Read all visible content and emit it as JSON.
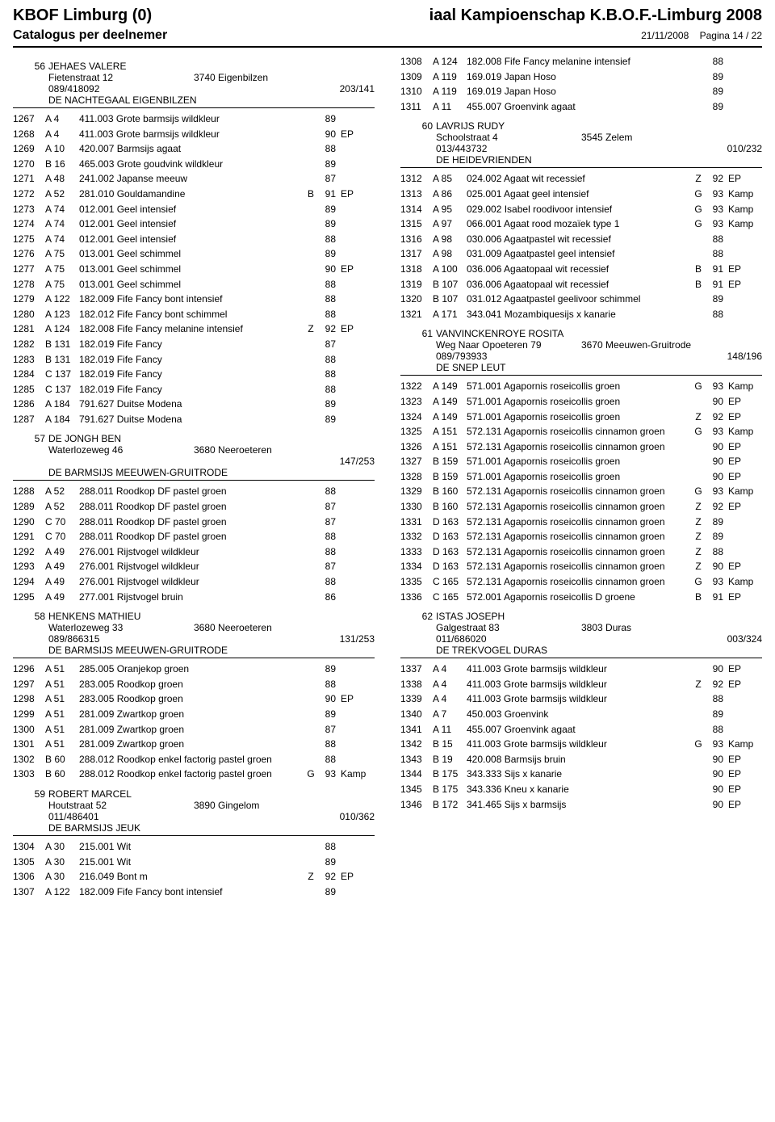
{
  "header": {
    "left": "KBOF Limburg (0)",
    "right": "iaal Kampioenschap K.B.O.F.-Limburg 2008",
    "sub_left": "Catalogus per deelnemer",
    "date": "21/11/2008",
    "page": "Pagina 14 / 22"
  },
  "left_col": [
    {
      "type": "participant",
      "id": "56",
      "name": "JEHAES VALERE",
      "street": "Fietenstraat 12",
      "city": "3740 Eigenbilzen",
      "phone": "089/418092",
      "code": "203/141",
      "club": "DE NACHTEGAAL EIGENBILZEN",
      "entries": [
        {
          "n": "1267",
          "cage": "A 4",
          "desc": "411.003 Grote barmsijs wildkleur",
          "flag": "",
          "score": "89",
          "award": ""
        },
        {
          "n": "1268",
          "cage": "A 4",
          "desc": "411.003 Grote barmsijs wildkleur",
          "flag": "",
          "score": "90",
          "award": "EP"
        },
        {
          "n": "1269",
          "cage": "A 10",
          "desc": "420.007 Barmsijs agaat",
          "flag": "",
          "score": "88",
          "award": ""
        },
        {
          "n": "1270",
          "cage": "B 16",
          "desc": "465.003 Grote goudvink wildkleur",
          "flag": "",
          "score": "89",
          "award": ""
        },
        {
          "n": "1271",
          "cage": "A 48",
          "desc": "241.002 Japanse meeuw",
          "flag": "",
          "score": "87",
          "award": ""
        },
        {
          "n": "1272",
          "cage": "A 52",
          "desc": "281.010 Gouldamandine",
          "flag": "B",
          "score": "91",
          "award": "EP"
        },
        {
          "n": "1273",
          "cage": "A 74",
          "desc": "012.001 Geel intensief",
          "flag": "",
          "score": "89",
          "award": ""
        },
        {
          "n": "1274",
          "cage": "A 74",
          "desc": "012.001 Geel intensief",
          "flag": "",
          "score": "89",
          "award": ""
        },
        {
          "n": "1275",
          "cage": "A 74",
          "desc": "012.001 Geel intensief",
          "flag": "",
          "score": "88",
          "award": ""
        },
        {
          "n": "1276",
          "cage": "A 75",
          "desc": "013.001 Geel schimmel",
          "flag": "",
          "score": "89",
          "award": ""
        },
        {
          "n": "1277",
          "cage": "A 75",
          "desc": "013.001 Geel schimmel",
          "flag": "",
          "score": "90",
          "award": "EP"
        },
        {
          "n": "1278",
          "cage": "A 75",
          "desc": "013.001 Geel schimmel",
          "flag": "",
          "score": "88",
          "award": ""
        },
        {
          "n": "1279",
          "cage": "A 122",
          "desc": "182.009 Fife Fancy bont intensief",
          "flag": "",
          "score": "88",
          "award": ""
        },
        {
          "n": "1280",
          "cage": "A 123",
          "desc": "182.012 Fife Fancy bont schimmel",
          "flag": "",
          "score": "88",
          "award": ""
        },
        {
          "n": "1281",
          "cage": "A 124",
          "desc": "182.008 Fife Fancy melanine intensief",
          "flag": "Z",
          "score": "92",
          "award": "EP"
        },
        {
          "n": "1282",
          "cage": "B 131",
          "desc": "182.019 Fife Fancy",
          "flag": "",
          "score": "87",
          "award": ""
        },
        {
          "n": "1283",
          "cage": "B 131",
          "desc": "182.019 Fife Fancy",
          "flag": "",
          "score": "88",
          "award": ""
        },
        {
          "n": "1284",
          "cage": "C 137",
          "desc": "182.019 Fife Fancy",
          "flag": "",
          "score": "88",
          "award": ""
        },
        {
          "n": "1285",
          "cage": "C 137",
          "desc": "182.019 Fife Fancy",
          "flag": "",
          "score": "88",
          "award": ""
        },
        {
          "n": "1286",
          "cage": "A 184",
          "desc": "791.627 Duitse Modena",
          "flag": "",
          "score": "89",
          "award": ""
        },
        {
          "n": "1287",
          "cage": "A 184",
          "desc": "791.627 Duitse Modena",
          "flag": "",
          "score": "89",
          "award": ""
        }
      ]
    },
    {
      "type": "participant",
      "id": "57",
      "name": "DE JONGH BEN",
      "street": "Waterlozeweg 46",
      "city": "3680 Neeroeteren",
      "phone": "",
      "code": "147/253",
      "club": "DE BARMSIJS MEEUWEN-GRUITRODE",
      "entries": [
        {
          "n": "1288",
          "cage": "A 52",
          "desc": "288.011 Roodkop DF pastel groen",
          "flag": "",
          "score": "88",
          "award": ""
        },
        {
          "n": "1289",
          "cage": "A 52",
          "desc": "288.011 Roodkop DF pastel groen",
          "flag": "",
          "score": "87",
          "award": ""
        },
        {
          "n": "1290",
          "cage": "C 70",
          "desc": "288.011 Roodkop DF pastel groen",
          "flag": "",
          "score": "87",
          "award": ""
        },
        {
          "n": "1291",
          "cage": "C 70",
          "desc": "288.011 Roodkop DF pastel groen",
          "flag": "",
          "score": "88",
          "award": ""
        },
        {
          "n": "1292",
          "cage": "A 49",
          "desc": "276.001 Rijstvogel wildkleur",
          "flag": "",
          "score": "88",
          "award": ""
        },
        {
          "n": "1293",
          "cage": "A 49",
          "desc": "276.001 Rijstvogel wildkleur",
          "flag": "",
          "score": "87",
          "award": ""
        },
        {
          "n": "1294",
          "cage": "A 49",
          "desc": "276.001 Rijstvogel wildkleur",
          "flag": "",
          "score": "88",
          "award": ""
        },
        {
          "n": "1295",
          "cage": "A 49",
          "desc": "277.001 Rijstvogel bruin",
          "flag": "",
          "score": "86",
          "award": ""
        }
      ]
    },
    {
      "type": "participant",
      "id": "58",
      "name": "HENKENS MATHIEU",
      "street": "Waterlozeweg 33",
      "city": "3680 Neeroeteren",
      "phone": "089/866315",
      "code": "131/253",
      "club": "DE BARMSIJS MEEUWEN-GRUITRODE",
      "entries": [
        {
          "n": "1296",
          "cage": "A 51",
          "desc": "285.005 Oranjekop groen",
          "flag": "",
          "score": "89",
          "award": ""
        },
        {
          "n": "1297",
          "cage": "A 51",
          "desc": "283.005 Roodkop groen",
          "flag": "",
          "score": "88",
          "award": ""
        },
        {
          "n": "1298",
          "cage": "A 51",
          "desc": "283.005 Roodkop groen",
          "flag": "",
          "score": "90",
          "award": "EP"
        },
        {
          "n": "1299",
          "cage": "A 51",
          "desc": "281.009 Zwartkop groen",
          "flag": "",
          "score": "89",
          "award": ""
        },
        {
          "n": "1300",
          "cage": "A 51",
          "desc": "281.009 Zwartkop groen",
          "flag": "",
          "score": "87",
          "award": ""
        },
        {
          "n": "1301",
          "cage": "A 51",
          "desc": "281.009 Zwartkop groen",
          "flag": "",
          "score": "88",
          "award": ""
        },
        {
          "n": "1302",
          "cage": "B 60",
          "desc": "288.012 Roodkop enkel factorig pastel groen",
          "flag": "",
          "score": "88",
          "award": ""
        },
        {
          "n": "1303",
          "cage": "B 60",
          "desc": "288.012 Roodkop enkel factorig pastel groen",
          "flag": "G",
          "score": "93",
          "award": "Kamp"
        }
      ]
    },
    {
      "type": "participant",
      "id": "59",
      "name": "ROBERT MARCEL",
      "street": "Houtstraat 52",
      "city": "3890 Gingelom",
      "phone": "011/486401",
      "code": "010/362",
      "club": "DE BARMSIJS JEUK",
      "entries": [
        {
          "n": "1304",
          "cage": "A 30",
          "desc": "215.001 Wit",
          "flag": "",
          "score": "88",
          "award": ""
        },
        {
          "n": "1305",
          "cage": "A 30",
          "desc": "215.001 Wit",
          "flag": "",
          "score": "89",
          "award": ""
        },
        {
          "n": "1306",
          "cage": "A 30",
          "desc": "216.049 Bont m",
          "flag": "Z",
          "score": "92",
          "award": "EP"
        },
        {
          "n": "1307",
          "cage": "A 122",
          "desc": "182.009 Fife Fancy bont intensief",
          "flag": "",
          "score": "89",
          "award": ""
        }
      ]
    }
  ],
  "right_col": [
    {
      "type": "entries_only",
      "entries": [
        {
          "n": "1308",
          "cage": "A 124",
          "desc": "182.008 Fife Fancy melanine intensief",
          "flag": "",
          "score": "88",
          "award": ""
        },
        {
          "n": "1309",
          "cage": "A 119",
          "desc": "169.019 Japan Hoso",
          "flag": "",
          "score": "89",
          "award": ""
        },
        {
          "n": "1310",
          "cage": "A 119",
          "desc": "169.019 Japan Hoso",
          "flag": "",
          "score": "89",
          "award": ""
        },
        {
          "n": "1311",
          "cage": "A 11",
          "desc": "455.007 Groenvink agaat",
          "flag": "",
          "score": "89",
          "award": ""
        }
      ]
    },
    {
      "type": "participant",
      "id": "60",
      "name": "LAVRIJS RUDY",
      "street": "Schoolstraat 4",
      "city": "3545 Zelem",
      "phone": "013/443732",
      "code": "010/232",
      "club": "DE HEIDEVRIENDEN",
      "entries": [
        {
          "n": "1312",
          "cage": "A 85",
          "desc": "024.002 Agaat wit recessief",
          "flag": "Z",
          "score": "92",
          "award": "EP"
        },
        {
          "n": "1313",
          "cage": "A 86",
          "desc": "025.001 Agaat geel intensief",
          "flag": "G",
          "score": "93",
          "award": "Kamp"
        },
        {
          "n": "1314",
          "cage": "A 95",
          "desc": "029.002 Isabel roodivoor intensief",
          "flag": "G",
          "score": "93",
          "award": "Kamp"
        },
        {
          "n": "1315",
          "cage": "A 97",
          "desc": "066.001 Agaat rood mozaïek type 1",
          "flag": "G",
          "score": "93",
          "award": "Kamp"
        },
        {
          "n": "1316",
          "cage": "A 98",
          "desc": "030.006 Agaatpastel wit recessief",
          "flag": "",
          "score": "88",
          "award": ""
        },
        {
          "n": "1317",
          "cage": "A 98",
          "desc": "031.009 Agaatpastel geel intensief",
          "flag": "",
          "score": "88",
          "award": ""
        },
        {
          "n": "1318",
          "cage": "A 100",
          "desc": "036.006 Agaatopaal wit recessief",
          "flag": "B",
          "score": "91",
          "award": "EP"
        },
        {
          "n": "1319",
          "cage": "B 107",
          "desc": "036.006 Agaatopaal wit recessief",
          "flag": "B",
          "score": "91",
          "award": "EP"
        },
        {
          "n": "1320",
          "cage": "B 107",
          "desc": "031.012 Agaatpastel geelivoor schimmel",
          "flag": "",
          "score": "89",
          "award": ""
        },
        {
          "n": "1321",
          "cage": "A 171",
          "desc": "343.041 Mozambiquesijs x kanarie",
          "flag": "",
          "score": "88",
          "award": ""
        }
      ]
    },
    {
      "type": "participant",
      "id": "61",
      "name": "VANVINCKENROYE ROSITA",
      "street": "Weg Naar Opoeteren 79",
      "city": "3670 Meeuwen-Gruitrode",
      "phone": "089/793933",
      "code": "148/196",
      "club": "DE SNEP LEUT",
      "entries": [
        {
          "n": "1322",
          "cage": "A 149",
          "desc": "571.001 Agapornis roseicollis groen",
          "flag": "G",
          "score": "93",
          "award": "Kamp"
        },
        {
          "n": "1323",
          "cage": "A 149",
          "desc": "571.001 Agapornis roseicollis groen",
          "flag": "",
          "score": "90",
          "award": "EP"
        },
        {
          "n": "1324",
          "cage": "A 149",
          "desc": "571.001 Agapornis roseicollis groen",
          "flag": "Z",
          "score": "92",
          "award": "EP"
        },
        {
          "n": "1325",
          "cage": "A 151",
          "desc": "572.131 Agapornis roseicollis cinnamon groen",
          "flag": "G",
          "score": "93",
          "award": "Kamp"
        },
        {
          "n": "1326",
          "cage": "A 151",
          "desc": "572.131 Agapornis roseicollis cinnamon groen",
          "flag": "",
          "score": "90",
          "award": "EP"
        },
        {
          "n": "1327",
          "cage": "B 159",
          "desc": "571.001 Agapornis roseicollis groen",
          "flag": "",
          "score": "90",
          "award": "EP"
        },
        {
          "n": "1328",
          "cage": "B 159",
          "desc": "571.001 Agapornis roseicollis groen",
          "flag": "",
          "score": "90",
          "award": "EP"
        },
        {
          "n": "1329",
          "cage": "B 160",
          "desc": "572.131 Agapornis roseicollis cinnamon groen",
          "flag": "G",
          "score": "93",
          "award": "Kamp"
        },
        {
          "n": "1330",
          "cage": "B 160",
          "desc": "572.131 Agapornis roseicollis cinnamon groen",
          "flag": "Z",
          "score": "92",
          "award": "EP"
        },
        {
          "n": "1331",
          "cage": "D 163",
          "desc": "572.131 Agapornis roseicollis cinnamon groen",
          "flag": "Z",
          "score": "89",
          "award": ""
        },
        {
          "n": "1332",
          "cage": "D 163",
          "desc": "572.131 Agapornis roseicollis cinnamon groen",
          "flag": "Z",
          "score": "89",
          "award": ""
        },
        {
          "n": "1333",
          "cage": "D 163",
          "desc": "572.131 Agapornis roseicollis cinnamon groen",
          "flag": "Z",
          "score": "88",
          "award": ""
        },
        {
          "n": "1334",
          "cage": "D 163",
          "desc": "572.131 Agapornis roseicollis cinnamon groen",
          "flag": "Z",
          "score": "90",
          "award": "EP"
        },
        {
          "n": "1335",
          "cage": "C 165",
          "desc": "572.131 Agapornis roseicollis cinnamon groen",
          "flag": "G",
          "score": "93",
          "award": "Kamp"
        },
        {
          "n": "1336",
          "cage": "C 165",
          "desc": "572.001 Agapornis roseicollis D groene",
          "flag": "B",
          "score": "91",
          "award": "EP"
        }
      ]
    },
    {
      "type": "participant",
      "id": "62",
      "name": "ISTAS JOSEPH",
      "street": "Galgestraat 83",
      "city": "3803 Duras",
      "phone": "011/686020",
      "code": "003/324",
      "club": "DE TREKVOGEL DURAS",
      "entries": [
        {
          "n": "1337",
          "cage": "A 4",
          "desc": "411.003 Grote barmsijs wildkleur",
          "flag": "",
          "score": "90",
          "award": "EP"
        },
        {
          "n": "1338",
          "cage": "A 4",
          "desc": "411.003 Grote barmsijs wildkleur",
          "flag": "Z",
          "score": "92",
          "award": "EP"
        },
        {
          "n": "1339",
          "cage": "A 4",
          "desc": "411.003 Grote barmsijs wildkleur",
          "flag": "",
          "score": "88",
          "award": ""
        },
        {
          "n": "1340",
          "cage": "A 7",
          "desc": "450.003 Groenvink",
          "flag": "",
          "score": "89",
          "award": ""
        },
        {
          "n": "1341",
          "cage": "A 11",
          "desc": "455.007 Groenvink agaat",
          "flag": "",
          "score": "88",
          "award": ""
        },
        {
          "n": "1342",
          "cage": "B 15",
          "desc": "411.003 Grote barmsijs wildkleur",
          "flag": "G",
          "score": "93",
          "award": "Kamp"
        },
        {
          "n": "1343",
          "cage": "B 19",
          "desc": "420.008 Barmsijs bruin",
          "flag": "",
          "score": "90",
          "award": "EP"
        },
        {
          "n": "1344",
          "cage": "B 175",
          "desc": "343.333 Sijs x kanarie",
          "flag": "",
          "score": "90",
          "award": "EP"
        },
        {
          "n": "1345",
          "cage": "B 175",
          "desc": "343.336 Kneu x kanarie",
          "flag": "",
          "score": "90",
          "award": "EP"
        },
        {
          "n": "1346",
          "cage": "B 172",
          "desc": "341.465 Sijs x barmsijs",
          "flag": "",
          "score": "90",
          "award": "EP"
        }
      ]
    }
  ]
}
